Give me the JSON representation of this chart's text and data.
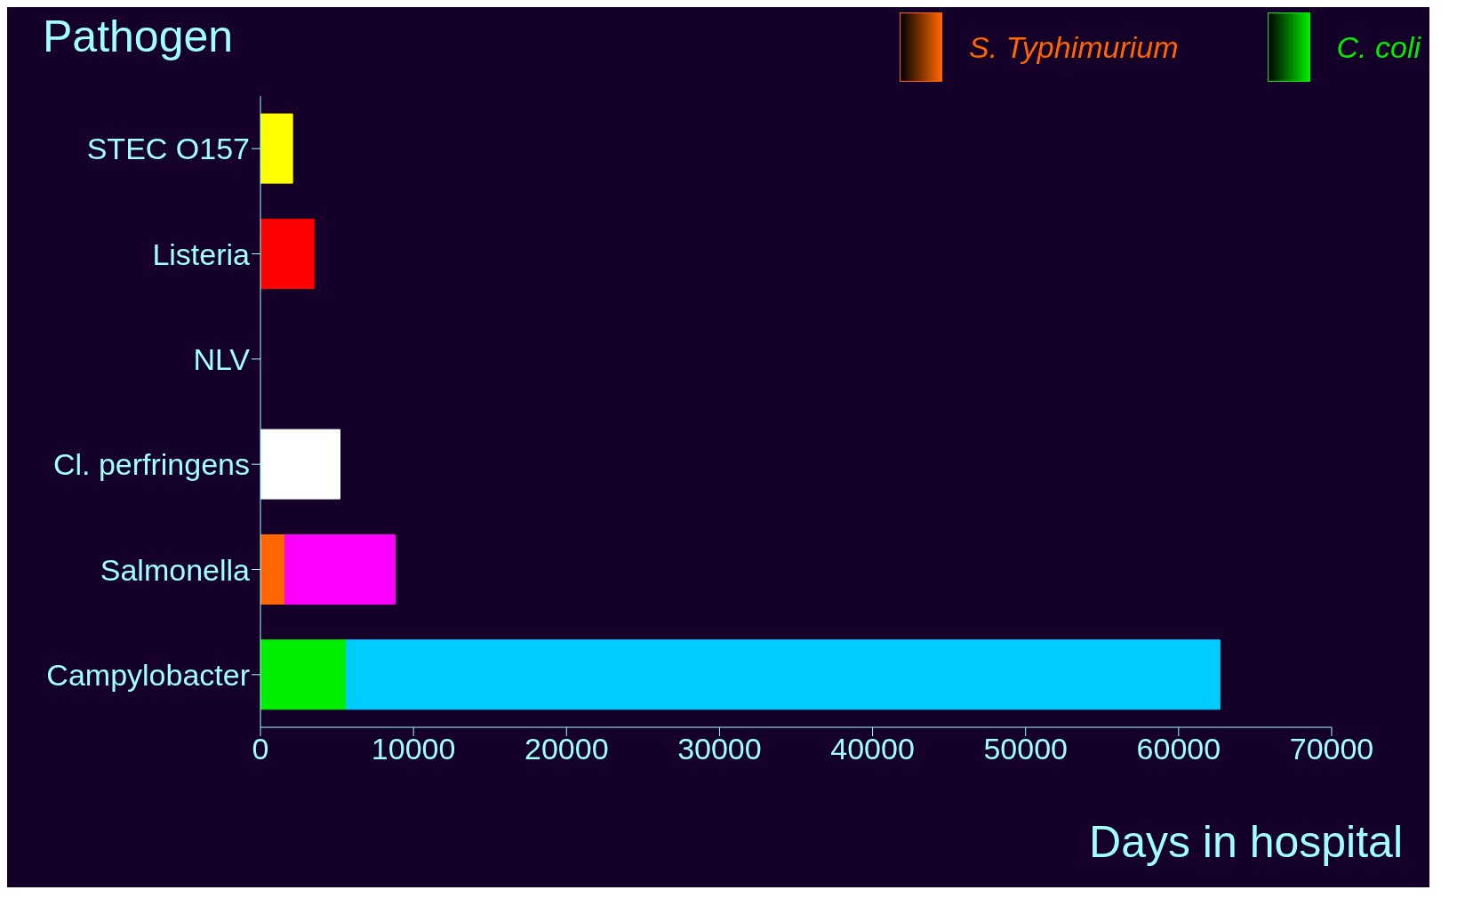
{
  "chart_data": {
    "type": "bar",
    "orientation": "horizontal",
    "stacked": true,
    "ylabel": "Pathogen",
    "xlabel": "Days in hospital",
    "categories": [
      "STEC O157",
      "Listeria",
      "NLV",
      "Cl. perfringens",
      "Salmonella",
      "Campylobacter"
    ],
    "series": [
      {
        "name": "S. Typhimurium",
        "color": "#ff6600",
        "values": [
          null,
          null,
          null,
          null,
          1600,
          null
        ]
      },
      {
        "name": "C. coli",
        "color": "#00ee00",
        "values": [
          null,
          null,
          null,
          null,
          null,
          5600
        ]
      },
      {
        "colors": [
          "#ffff00",
          "#ff0000",
          null,
          "#ffffff",
          "#ff00ff",
          "#00ccff"
        ],
        "values": [
          2100,
          3500,
          null,
          5200,
          7200,
          57100
        ]
      }
    ],
    "xlim": [
      0,
      70000
    ],
    "xticks": [
      0,
      10000,
      20000,
      30000,
      40000,
      50000,
      60000,
      70000
    ],
    "legend": "top right"
  }
}
